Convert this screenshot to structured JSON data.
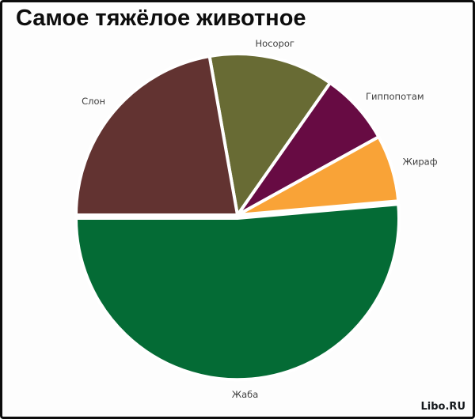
{
  "page": {
    "title": "Самое тяжёлое животное",
    "watermark": "Libo.RU"
  },
  "chart_data": {
    "type": "pie",
    "title": "Самое тяжёлое животное",
    "legend_position": "none",
    "data_labels": "category-names-outside",
    "label_color": "#3e3e3e",
    "separator_color": "#ffffff",
    "background": "#fdfdfd",
    "slices": [
      {
        "label": "Носорог",
        "value_pct": 12.5,
        "color": "#686b34",
        "start_angle": -10,
        "end_angle": 35,
        "exploded": false
      },
      {
        "label": "Гиппопотам",
        "value_pct": 7.2,
        "color": "#670b43",
        "start_angle": 35,
        "end_angle": 61,
        "exploded": false
      },
      {
        "label": "Жираф",
        "value_pct": 6.7,
        "color": "#f9a337",
        "start_angle": 61,
        "end_angle": 85,
        "exploded": false
      },
      {
        "label": "Жаба",
        "value_pct": 51.4,
        "color": "#046b35",
        "start_angle": 85,
        "end_angle": 270,
        "exploded": true
      },
      {
        "label": "Слон",
        "value_pct": 22.2,
        "color": "#623331",
        "start_angle": 270,
        "end_angle": 350,
        "exploded": false
      }
    ]
  }
}
